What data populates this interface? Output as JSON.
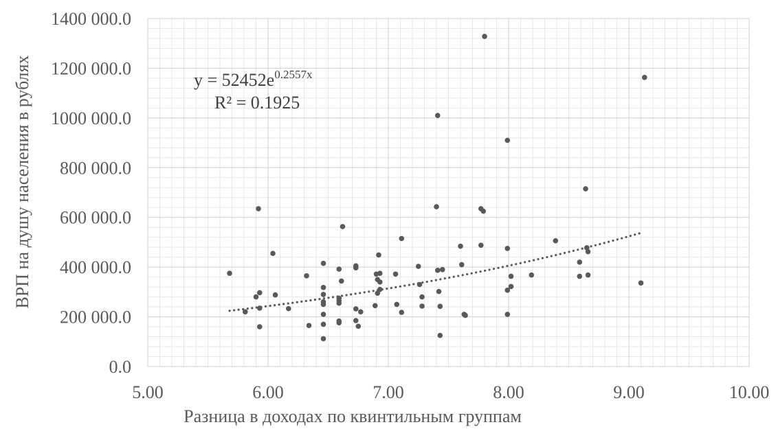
{
  "chart_data": {
    "type": "scatter",
    "xlabel": "Разница в доходах по квинтильным группам",
    "ylabel": "ВРП на душу населения в рублях",
    "xlim": [
      5,
      10
    ],
    "ylim": [
      0,
      1400000
    ],
    "x_ticks": [
      "5.00",
      "6.00",
      "7.00",
      "8.00",
      "9.00",
      "10.00"
    ],
    "y_ticks": [
      "0.0",
      "200 000.0",
      "400 000.0",
      "600 000.0",
      "800 000.0",
      "1000 000.0",
      "1200 000.0",
      "1400 000.0"
    ],
    "grid": true,
    "marker_color": "#595959",
    "trendline": {
      "type": "exponential",
      "a": 52452,
      "b": 0.2557,
      "equation_prefix": "y = 52452e",
      "equation_exponent": "0.2557x",
      "r_squared": "R² = 0.1925",
      "x_range": [
        5.68,
        9.12
      ],
      "color": "#595959"
    },
    "points": [
      [
        5.68,
        375000
      ],
      [
        5.81,
        220000
      ],
      [
        5.9,
        280000
      ],
      [
        5.92,
        635000
      ],
      [
        5.93,
        160000
      ],
      [
        5.93,
        235000
      ],
      [
        5.93,
        297000
      ],
      [
        6.04,
        455000
      ],
      [
        6.06,
        288000
      ],
      [
        6.17,
        233000
      ],
      [
        6.32,
        365000
      ],
      [
        6.34,
        165000
      ],
      [
        6.46,
        415000
      ],
      [
        6.46,
        318000
      ],
      [
        6.46,
        290000
      ],
      [
        6.46,
        260000
      ],
      [
        6.46,
        250000
      ],
      [
        6.46,
        210000
      ],
      [
        6.46,
        170000
      ],
      [
        6.46,
        112000
      ],
      [
        6.59,
        392000
      ],
      [
        6.59,
        275000
      ],
      [
        6.59,
        265000
      ],
      [
        6.59,
        255000
      ],
      [
        6.59,
        183000
      ],
      [
        6.59,
        176000
      ],
      [
        6.61,
        344000
      ],
      [
        6.62,
        563000
      ],
      [
        6.73,
        405000
      ],
      [
        6.73,
        397000
      ],
      [
        6.73,
        232000
      ],
      [
        6.73,
        185000
      ],
      [
        6.75,
        162000
      ],
      [
        6.77,
        220000
      ],
      [
        6.89,
        245000
      ],
      [
        6.9,
        372000
      ],
      [
        6.91,
        350000
      ],
      [
        6.91,
        295000
      ],
      [
        6.92,
        449000
      ],
      [
        6.93,
        375000
      ],
      [
        6.93,
        340000
      ],
      [
        6.93,
        310000
      ],
      [
        7.06,
        372000
      ],
      [
        7.07,
        250000
      ],
      [
        7.11,
        515000
      ],
      [
        7.11,
        218000
      ],
      [
        7.25,
        403000
      ],
      [
        7.26,
        330000
      ],
      [
        7.28,
        280000
      ],
      [
        7.28,
        243000
      ],
      [
        7.4,
        643000
      ],
      [
        7.41,
        1010000
      ],
      [
        7.41,
        387000
      ],
      [
        7.42,
        302000
      ],
      [
        7.43,
        242000
      ],
      [
        7.43,
        125000
      ],
      [
        7.45,
        390000
      ],
      [
        7.6,
        484000
      ],
      [
        7.61,
        410000
      ],
      [
        7.63,
        210000
      ],
      [
        7.64,
        206000
      ],
      [
        7.77,
        635000
      ],
      [
        7.77,
        488000
      ],
      [
        7.79,
        625000
      ],
      [
        7.8,
        1328000
      ],
      [
        7.99,
        910000
      ],
      [
        7.99,
        475000
      ],
      [
        7.99,
        307000
      ],
      [
        7.99,
        210000
      ],
      [
        8.02,
        363000
      ],
      [
        8.02,
        322000
      ],
      [
        8.19,
        368000
      ],
      [
        8.39,
        506000
      ],
      [
        8.59,
        420000
      ],
      [
        8.59,
        363000
      ],
      [
        8.64,
        715000
      ],
      [
        8.65,
        478000
      ],
      [
        8.66,
        462000
      ],
      [
        8.66,
        368000
      ],
      [
        9.1,
        336000
      ],
      [
        9.13,
        1163000
      ]
    ]
  }
}
